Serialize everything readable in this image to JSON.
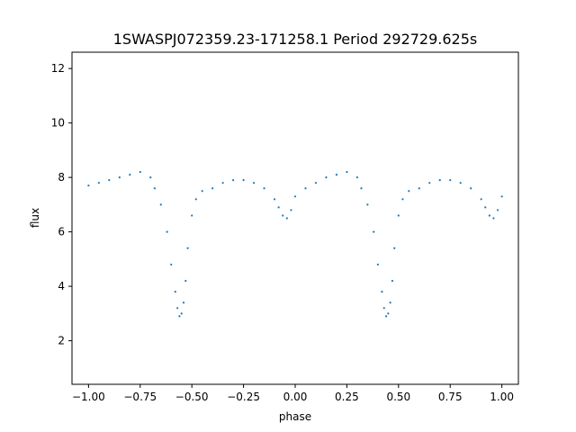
{
  "chart_data": {
    "type": "scatter",
    "title": "1SWASPJ072359.23-171258.1 Period 292729.625s",
    "xlabel": "phase",
    "ylabel": "flux",
    "xlim": [
      -1.08,
      1.08
    ],
    "ylim": [
      0.4,
      12.6
    ],
    "xticks": [
      -1.0,
      -0.75,
      -0.5,
      -0.25,
      0.0,
      0.25,
      0.5,
      0.75,
      1.0
    ],
    "xtick_labels": [
      "−1.00",
      "−0.75",
      "−0.50",
      "−0.25",
      "0.00",
      "0.25",
      "0.50",
      "0.75",
      "1.00"
    ],
    "yticks": [
      2,
      4,
      6,
      8,
      10,
      12
    ],
    "ytick_labels": [
      "2",
      "4",
      "6",
      "8",
      "10",
      "12"
    ],
    "grid": false,
    "marker_color": "#1f77b4",
    "series": [
      {
        "x": [
          -1.0,
          -0.95,
          -0.9,
          -0.85,
          -0.8,
          -0.75,
          -0.7,
          -0.68,
          -0.65,
          -0.62,
          -0.6,
          -0.58,
          -0.57,
          -0.56,
          -0.55,
          -0.54,
          -0.53,
          -0.52,
          -0.5,
          -0.48,
          -0.45,
          -0.4,
          -0.35,
          -0.3,
          -0.25,
          -0.2,
          -0.15,
          -0.1,
          -0.08,
          -0.06,
          -0.04,
          -0.02,
          0.0,
          0.05,
          0.1,
          0.15,
          0.2,
          0.25,
          0.3,
          0.32,
          0.35,
          0.38,
          0.4,
          0.42,
          0.43,
          0.44,
          0.45,
          0.46,
          0.47,
          0.48,
          0.5,
          0.52,
          0.55,
          0.6,
          0.65,
          0.7,
          0.75,
          0.8,
          0.85,
          0.9,
          0.92,
          0.94,
          0.96,
          0.98,
          1.0
        ],
        "y": [
          7.7,
          7.8,
          7.9,
          8.0,
          8.1,
          8.2,
          8.0,
          7.6,
          7.0,
          6.0,
          4.8,
          3.8,
          3.2,
          2.9,
          3.0,
          3.4,
          4.2,
          5.4,
          6.6,
          7.2,
          7.5,
          7.6,
          7.8,
          7.9,
          7.9,
          7.8,
          7.6,
          7.2,
          6.9,
          6.6,
          6.5,
          6.8,
          7.3,
          7.6,
          7.8,
          8.0,
          8.1,
          8.2,
          8.0,
          7.6,
          7.0,
          6.0,
          4.8,
          3.8,
          3.2,
          2.9,
          3.0,
          3.4,
          4.2,
          5.4,
          6.6,
          7.2,
          7.5,
          7.6,
          7.8,
          7.9,
          7.9,
          7.8,
          7.6,
          7.2,
          6.9,
          6.6,
          6.5,
          6.8,
          7.3
        ]
      }
    ]
  }
}
